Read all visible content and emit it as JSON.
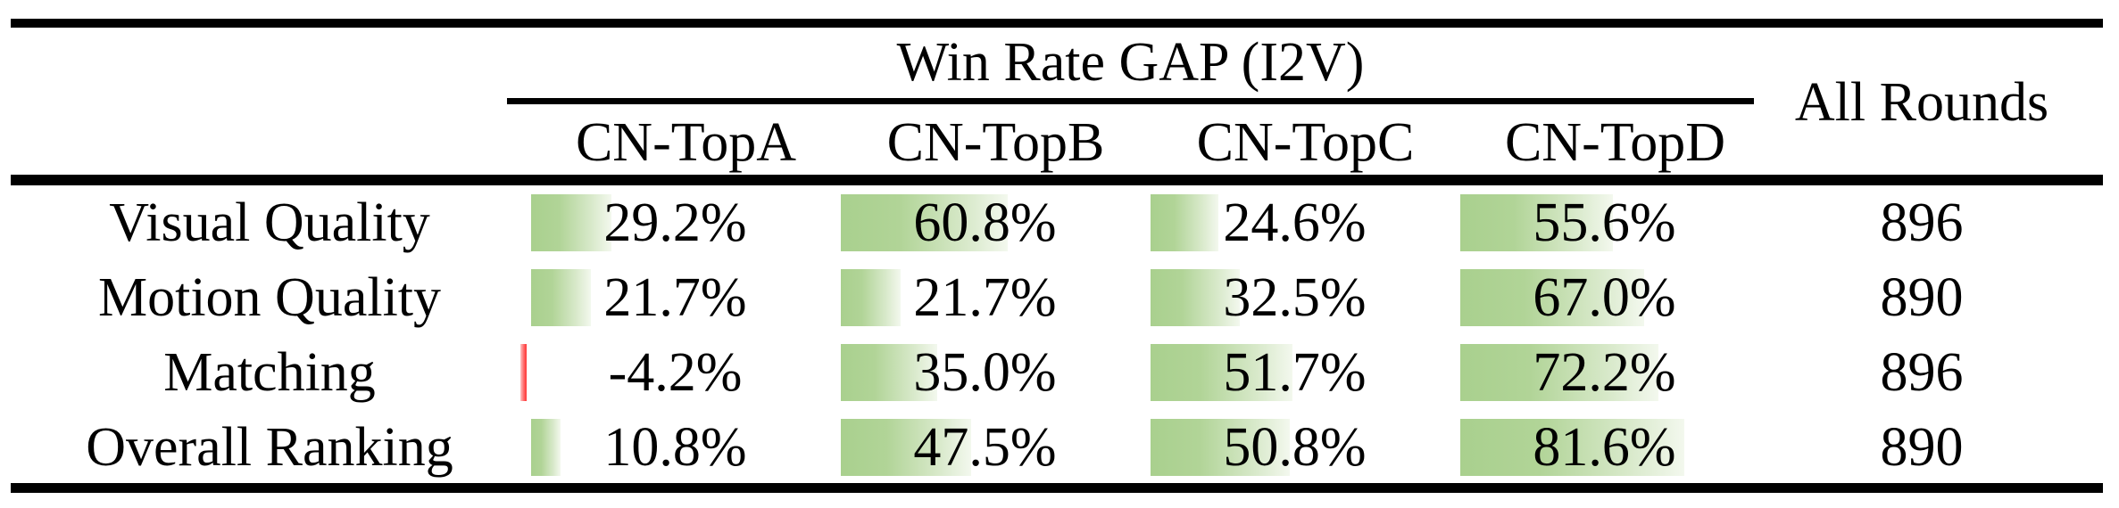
{
  "table": {
    "group_header": "Win Rate GAP (I2V)",
    "all_rounds_header": "All Rounds",
    "columns": [
      "CN-TopA",
      "CN-TopB",
      "CN-TopC",
      "CN-TopD"
    ],
    "rows": [
      {
        "label": "Visual Quality",
        "cells": [
          {
            "display": "29.2%",
            "value": 29.2
          },
          {
            "display": "60.8%",
            "value": 60.8
          },
          {
            "display": "24.6%",
            "value": 24.6
          },
          {
            "display": "55.6%",
            "value": 55.6
          }
        ],
        "all_rounds": "896"
      },
      {
        "label": "Motion Quality",
        "cells": [
          {
            "display": "21.7%",
            "value": 21.7
          },
          {
            "display": "21.7%",
            "value": 21.7
          },
          {
            "display": "32.5%",
            "value": 32.5
          },
          {
            "display": "67.0%",
            "value": 67.0
          }
        ],
        "all_rounds": "890"
      },
      {
        "label": "Matching",
        "cells": [
          {
            "display": "-4.2%",
            "value": -4.2
          },
          {
            "display": "35.0%",
            "value": 35.0
          },
          {
            "display": "51.7%",
            "value": 51.7
          },
          {
            "display": "72.2%",
            "value": 72.2
          }
        ],
        "all_rounds": "896"
      },
      {
        "label": "Overall Ranking",
        "cells": [
          {
            "display": "10.8%",
            "value": 10.8
          },
          {
            "display": "47.5%",
            "value": 47.5
          },
          {
            "display": "50.8%",
            "value": 50.8
          },
          {
            "display": "81.6%",
            "value": 81.6
          }
        ],
        "all_rounds": "890"
      }
    ]
  },
  "colors": {
    "bar_positive_green": "#a9d08e",
    "bar_negative_red": "#ff3333",
    "text": "#000000",
    "rule": "#000000"
  }
}
